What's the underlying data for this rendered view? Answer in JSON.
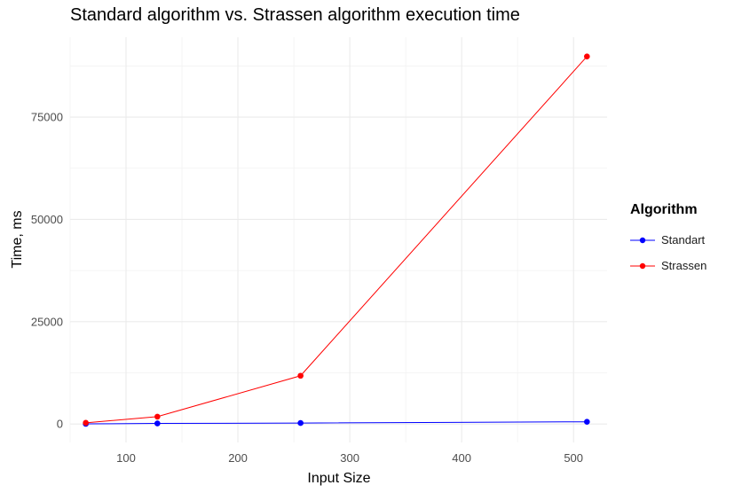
{
  "chart_data": {
    "type": "line",
    "title": "Standard algorithm vs. Strassen algorithm execution time",
    "xlabel": "Input Size",
    "ylabel": "Time, ms",
    "xlim": [
      50,
      530
    ],
    "ylim": [
      -4500,
      94500
    ],
    "x_major_ticks": [
      100,
      200,
      300,
      400,
      500
    ],
    "x_minor_ticks": [
      50,
      150,
      250,
      350,
      450
    ],
    "y_major_ticks": [
      0,
      25000,
      50000,
      75000
    ],
    "y_minor_ticks": [
      12500,
      37500,
      62500,
      87500
    ],
    "x_tick_labels": [
      "100",
      "200",
      "300",
      "400",
      "500"
    ],
    "y_tick_labels": [
      "0",
      "25000",
      "50000",
      "75000"
    ],
    "grid": true,
    "legend": {
      "title": "Algorithm",
      "position": "right"
    },
    "series": [
      {
        "name": "Standart",
        "color": "#0000ff",
        "x": [
          64,
          128,
          256,
          512
        ],
        "y": [
          50,
          150,
          250,
          550
        ]
      },
      {
        "name": "Strassen",
        "color": "#ff0000",
        "x": [
          64,
          128,
          256,
          512
        ],
        "y": [
          300,
          1800,
          11800,
          89800
        ]
      }
    ]
  }
}
